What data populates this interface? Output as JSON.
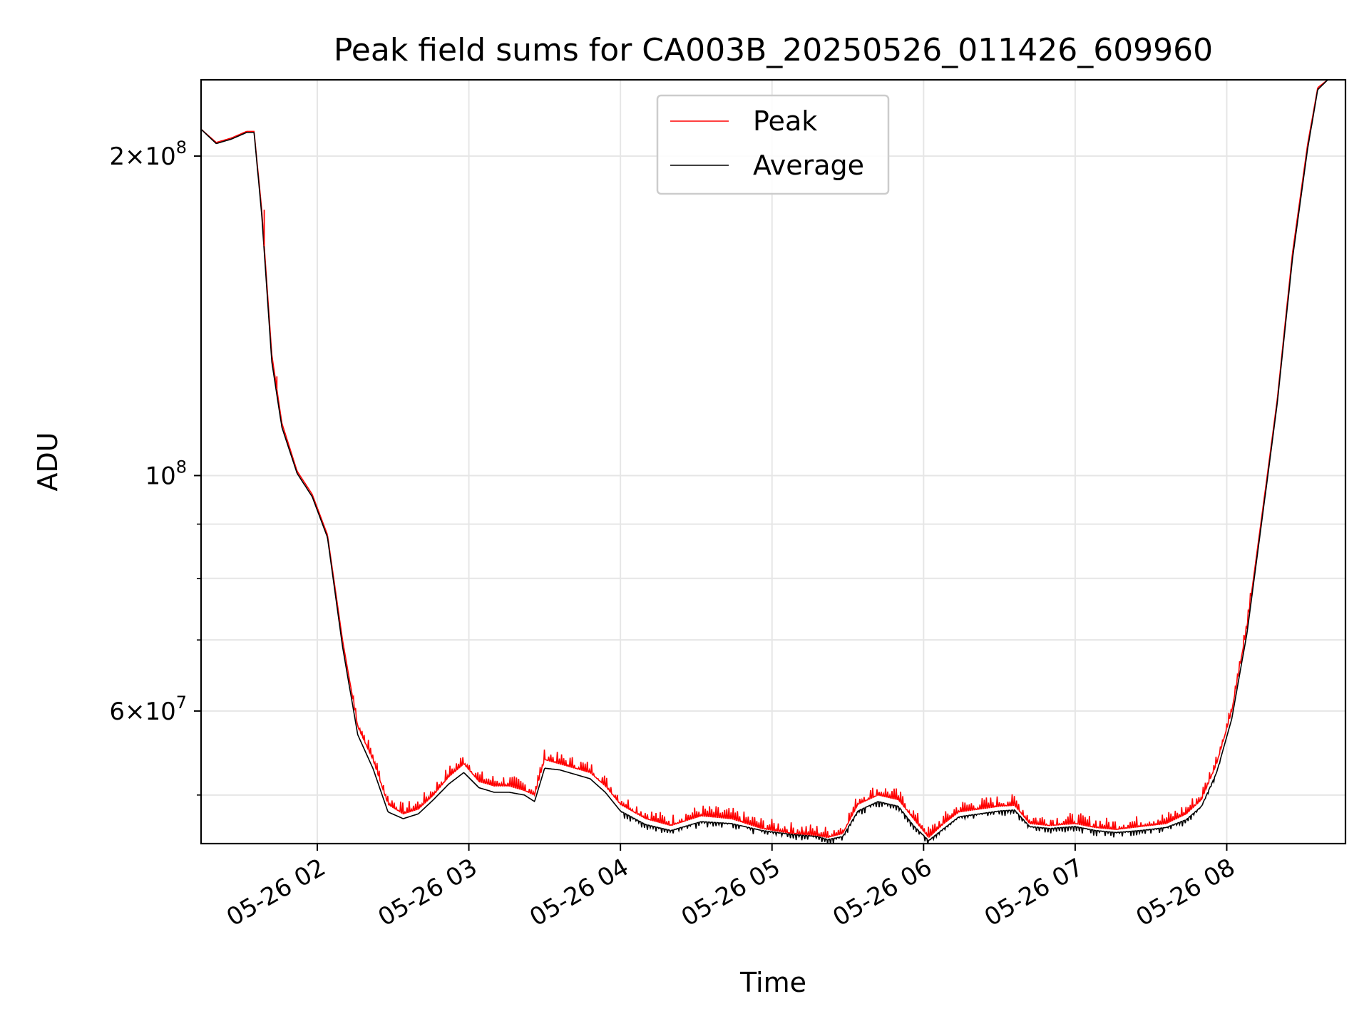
{
  "chart_data": {
    "type": "line",
    "title": "Peak field sums for CA003B_20250526_011426_609960",
    "xlabel": "Time",
    "ylabel": "ADU",
    "yscale": "log",
    "grid": true,
    "legend_position": "upper center",
    "xlim": [
      "2025-05-26 01:14",
      "2025-05-26 08:47"
    ],
    "ylim": [
      45000000,
      236000000
    ],
    "x_ticks": [
      {
        "time": "2025-05-26 02:00",
        "label": "05-26 02"
      },
      {
        "time": "2025-05-26 03:00",
        "label": "05-26 03"
      },
      {
        "time": "2025-05-26 04:00",
        "label": "05-26 04"
      },
      {
        "time": "2025-05-26 05:00",
        "label": "05-26 05"
      },
      {
        "time": "2025-05-26 06:00",
        "label": "05-26 06"
      },
      {
        "time": "2025-05-26 07:00",
        "label": "05-26 07"
      },
      {
        "time": "2025-05-26 08:00",
        "label": "05-26 08"
      }
    ],
    "y_major_ticks": [
      {
        "value": 200000000,
        "mantissa": "2",
        "exponent": "8"
      },
      {
        "value": 100000000,
        "mantissa": "",
        "exponent": "8"
      },
      {
        "value": 60000000,
        "mantissa": "6",
        "exponent": "7"
      }
    ],
    "y_minor_ticks": [
      50000000,
      70000000,
      80000000,
      90000000
    ],
    "series": [
      {
        "name": "Peak",
        "color": "#ff0000",
        "x": [
          "2025-05-26 01:14",
          "2025-05-26 01:20",
          "2025-05-26 01:26",
          "2025-05-26 01:32",
          "2025-05-26 01:35",
          "2025-05-26 01:38",
          "2025-05-26 01:42",
          "2025-05-26 01:46",
          "2025-05-26 01:52",
          "2025-05-26 01:58",
          "2025-05-26 02:04",
          "2025-05-26 02:10",
          "2025-05-26 02:16",
          "2025-05-26 02:22",
          "2025-05-26 02:28",
          "2025-05-26 02:34",
          "2025-05-26 02:40",
          "2025-05-26 02:46",
          "2025-05-26 02:52",
          "2025-05-26 02:58",
          "2025-05-26 03:04",
          "2025-05-26 03:10",
          "2025-05-26 03:16",
          "2025-05-26 03:22",
          "2025-05-26 03:26",
          "2025-05-26 03:30",
          "2025-05-26 03:36",
          "2025-05-26 03:42",
          "2025-05-26 03:48",
          "2025-05-26 03:54",
          "2025-05-26 04:00",
          "2025-05-26 04:10",
          "2025-05-26 04:20",
          "2025-05-26 04:32",
          "2025-05-26 04:44",
          "2025-05-26 04:56",
          "2025-05-26 05:08",
          "2025-05-26 05:18",
          "2025-05-26 05:22",
          "2025-05-26 05:28",
          "2025-05-26 05:34",
          "2025-05-26 05:42",
          "2025-05-26 05:50",
          "2025-05-26 05:56",
          "2025-05-26 06:02",
          "2025-05-26 06:08",
          "2025-05-26 06:14",
          "2025-05-26 06:22",
          "2025-05-26 06:30",
          "2025-05-26 06:36",
          "2025-05-26 06:42",
          "2025-05-26 06:50",
          "2025-05-26 07:00",
          "2025-05-26 07:08",
          "2025-05-26 07:16",
          "2025-05-26 07:26",
          "2025-05-26 07:36",
          "2025-05-26 07:44",
          "2025-05-26 07:50",
          "2025-05-26 07:56",
          "2025-05-26 08:02",
          "2025-05-26 08:08",
          "2025-05-26 08:14",
          "2025-05-26 08:20",
          "2025-05-26 08:26",
          "2025-05-26 08:32",
          "2025-05-26 08:36",
          "2025-05-26 08:40",
          "2025-05-26 08:47"
        ],
        "y": [
          212000000,
          206000000,
          208000000,
          211000000,
          211000000,
          178000000,
          130000000,
          112000000,
          101000000,
          96000000,
          88000000,
          70000000,
          58000000,
          54000000,
          49000000,
          48000000,
          48500000,
          50000000,
          52000000,
          53500000,
          51500000,
          51000000,
          51000000,
          50500000,
          50000000,
          54000000,
          53500000,
          53000000,
          52500000,
          51000000,
          49000000,
          47500000,
          46800000,
          47800000,
          47500000,
          46500000,
          46000000,
          45800000,
          45600000,
          46000000,
          49000000,
          50000000,
          49500000,
          47500000,
          45600000,
          47000000,
          48200000,
          48500000,
          48800000,
          48900000,
          47000000,
          46800000,
          47000000,
          46600000,
          46400000,
          46700000,
          47000000,
          48000000,
          49500000,
          53500000,
          60000000,
          72000000,
          92000000,
          118000000,
          162000000,
          205000000,
          232000000,
          236000000,
          236000000
        ]
      },
      {
        "name": "Average",
        "color": "#000000",
        "x": [
          "2025-05-26 01:14",
          "2025-05-26 01:20",
          "2025-05-26 01:26",
          "2025-05-26 01:32",
          "2025-05-26 01:35",
          "2025-05-26 01:38",
          "2025-05-26 01:42",
          "2025-05-26 01:46",
          "2025-05-26 01:52",
          "2025-05-26 01:58",
          "2025-05-26 02:04",
          "2025-05-26 02:10",
          "2025-05-26 02:16",
          "2025-05-26 02:22",
          "2025-05-26 02:28",
          "2025-05-26 02:34",
          "2025-05-26 02:40",
          "2025-05-26 02:46",
          "2025-05-26 02:52",
          "2025-05-26 02:58",
          "2025-05-26 03:04",
          "2025-05-26 03:10",
          "2025-05-26 03:16",
          "2025-05-26 03:22",
          "2025-05-26 03:26",
          "2025-05-26 03:30",
          "2025-05-26 03:36",
          "2025-05-26 03:42",
          "2025-05-26 03:48",
          "2025-05-26 03:54",
          "2025-05-26 04:00",
          "2025-05-26 04:10",
          "2025-05-26 04:20",
          "2025-05-26 04:32",
          "2025-05-26 04:44",
          "2025-05-26 04:56",
          "2025-05-26 05:08",
          "2025-05-26 05:18",
          "2025-05-26 05:22",
          "2025-05-26 05:28",
          "2025-05-26 05:34",
          "2025-05-26 05:42",
          "2025-05-26 05:50",
          "2025-05-26 05:56",
          "2025-05-26 06:02",
          "2025-05-26 06:08",
          "2025-05-26 06:14",
          "2025-05-26 06:22",
          "2025-05-26 06:30",
          "2025-05-26 06:36",
          "2025-05-26 06:42",
          "2025-05-26 06:50",
          "2025-05-26 07:00",
          "2025-05-26 07:08",
          "2025-05-26 07:16",
          "2025-05-26 07:26",
          "2025-05-26 07:36",
          "2025-05-26 07:44",
          "2025-05-26 07:50",
          "2025-05-26 07:56",
          "2025-05-26 08:02",
          "2025-05-26 08:08",
          "2025-05-26 08:14",
          "2025-05-26 08:20",
          "2025-05-26 08:26",
          "2025-05-26 08:32",
          "2025-05-26 08:36",
          "2025-05-26 08:40",
          "2025-05-26 08:47"
        ],
        "y": [
          212000000,
          205500000,
          207500000,
          210500000,
          210500000,
          176000000,
          128000000,
          111000000,
          100500000,
          95500000,
          87500000,
          69000000,
          57000000,
          53000000,
          48200000,
          47500000,
          48000000,
          49500000,
          51200000,
          52500000,
          50800000,
          50300000,
          50300000,
          50000000,
          49300000,
          53000000,
          52800000,
          52300000,
          51800000,
          50300000,
          48300000,
          46900000,
          46300000,
          47200000,
          47000000,
          46300000,
          45900000,
          45700000,
          45400000,
          45700000,
          48300000,
          49300000,
          48800000,
          46800000,
          45300000,
          46500000,
          47700000,
          48000000,
          48300000,
          48400000,
          46700000,
          46500000,
          46700000,
          46300000,
          46100000,
          46300000,
          46600000,
          47400000,
          48800000,
          52500000,
          59000000,
          71000000,
          91000000,
          117000000,
          160000000,
          203000000,
          231000000,
          236000000,
          236000000
        ]
      }
    ],
    "noise_amplitude_visible": "small spikes up to ~2% above the average throughout the night",
    "spikes": [
      {
        "time": "2025-05-26 01:39",
        "peak_value": 178000000
      },
      {
        "time": "2025-05-26 01:44",
        "peak_value": 124000000
      }
    ]
  }
}
